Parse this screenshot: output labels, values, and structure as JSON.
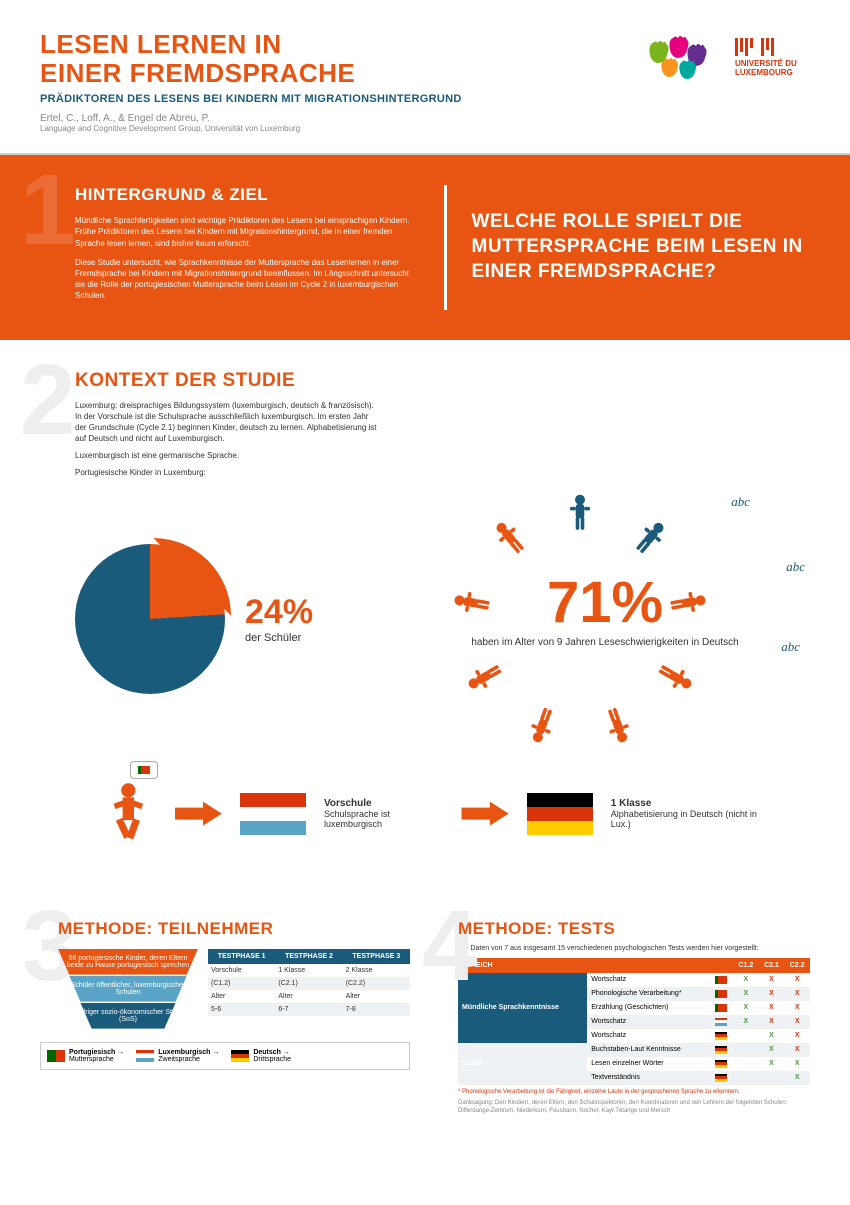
{
  "header": {
    "title": "LESEN LERNEN IN\nEINER FREMDSPRACHE",
    "subtitle": "PRÄDIKTOREN DES LESENS BEI KINDERN MIT MIGRATIONSHINTERGRUND",
    "authors": "Ertel, C., Loff, A., & Engel de Abreu, P.",
    "group": "Language and Cognitive Development Group, Universität von Luxemburg",
    "uni": "UNIVERSITÉ DU\nLUXEMBOURG"
  },
  "colors": {
    "orange": "#e85412",
    "blue": "#1a5a7a",
    "lightblue": "#5aa5c7",
    "grey_bg": "#eef2f4",
    "green_x": "#4a9b3a",
    "red_x": "#d9340a"
  },
  "s1": {
    "num": "1",
    "title": "HINTERGRUND & ZIEL",
    "p1": "Mündliche Sprachfertigkeiten sind wichtige Prädiktoren des Lesens bei einsprachigen Kindern. Frühe Prädiktoren des Lesens bei Kindern mit Migrationshintergrund, die in einer fremden Sprache lesen lernen, sind bisher kaum erforscht.",
    "p2": "Diese Studie untersucht, wie Sprachkenntnisse der Muttersprache das Lesenlernen in einer Fremdsprache bei Kindern mit Migrationshintergrund beeinflussen. Im Längsschnitt untersucht sie die Rolle der portugiesischen Muttersprache beim Lesen im Cycle 2 in luxemburgischen Schulen.",
    "question": "WELCHE ROLLE SPIELT DIE MUTTERSPRACHE BEIM LESEN IN EINER FREMDSPRACHE?"
  },
  "s2": {
    "num": "2",
    "title": "KONTEXT DER STUDIE",
    "p1": "Luxemburg: dreisprachiges Bildungssystem (luxemburgisch, deutsch & französisch). In der Vorschule ist die Schulsprache ausschließlich luxemburgisch. Im ersten Jahr der Grundschule (Cycle 2.1) beginnen Kinder, deutsch zu lernen. Alphabetisierung ist auf Deutsch und nicht auf Luxemburgisch.",
    "p2": "Luxemburgisch ist eine germanische Sprache.",
    "p3": "Portugiesische Kinder in Luxemburg:",
    "pie_pct": "24%",
    "pie_value": 24,
    "pie_sub": "der Schüler",
    "big_pct": "71%",
    "big_sub": "haben im Alter von 9 Jahren Leseschwierigkeiten in Deutsch",
    "flow": {
      "preschool_label": "Vorschule",
      "preschool_text": "Schulsprache ist luxemburgisch",
      "grade1_label": "1 Klasse",
      "grade1_text": "Alphabetisierung in Deutsch (nicht in Lux.)"
    }
  },
  "s3": {
    "num": "3",
    "title": "METHODE: TEILNEHMER",
    "funnel": [
      "66 portugiesische Kinder, deren Eltern beide zu Hause portugiesisch sprechen",
      "Schüler öffentlicher, luxemburgischer Schulen",
      "Niedriger sozio-ökonomischer Status (SoS)"
    ],
    "phases": {
      "headers": [
        "TESTPHASE 1",
        "TESTPHASE 2",
        "TESTPHASE 3"
      ],
      "rows": [
        [
          "Vorschule",
          "1 Klasse",
          "2 Klasse"
        ],
        [
          "(C1.2)",
          "(C2.1)",
          "(C2.2)"
        ],
        [
          "Alter",
          "Alter",
          "Alter"
        ],
        [
          "5-6",
          "6-7",
          "7-8"
        ]
      ]
    },
    "legend": [
      {
        "lang": "Portugiesisch",
        "role": "Muttersprache",
        "flag": [
          "#006600",
          "#d9340a"
        ],
        "vertical": true
      },
      {
        "lang": "Luxemburgisch",
        "role": "Zweitsprache",
        "flag": [
          "#d9340a",
          "#ffffff",
          "#5aa5c7"
        ]
      },
      {
        "lang": "Deutsch",
        "role": "Drittsprache",
        "flag": [
          "#000000",
          "#d9340a",
          "#ffcc00"
        ]
      }
    ]
  },
  "s4": {
    "num": "4",
    "title": "METHODE: TESTS",
    "intro": "Die Daten von 7 aus insgesamt 15 verschiedenen psychologischen Tests werden hier vorgestellt:",
    "headers": [
      "BEREICH",
      "",
      "",
      "C1.2",
      "C2.1",
      "C2.2"
    ],
    "categories": [
      {
        "name": "Mündliche Sprachkenntnisse",
        "tests": [
          {
            "name": "Wortschatz",
            "flag": "pt",
            "c": [
              "X",
              "X",
              "X"
            ],
            "cc": [
              "g",
              "r",
              "r"
            ]
          },
          {
            "name": "Phonologische Verarbeitung*",
            "flag": "pt",
            "c": [
              "X",
              "X",
              "X"
            ],
            "cc": [
              "g",
              "r",
              "r"
            ]
          },
          {
            "name": "Erzählung (Geschichten)",
            "flag": "pt",
            "c": [
              "X",
              "X",
              "X"
            ],
            "cc": [
              "g",
              "r",
              "r"
            ]
          },
          {
            "name": "Wortschatz",
            "flag": "lu",
            "c": [
              "X",
              "X",
              "X"
            ],
            "cc": [
              "g",
              "r",
              "r"
            ]
          },
          {
            "name": "Wortschatz",
            "flag": "de",
            "c": [
              "",
              "X",
              "X"
            ],
            "cc": [
              "",
              "g",
              "r"
            ]
          }
        ]
      },
      {
        "name": "Lesen",
        "tests": [
          {
            "name": "Buchstaben-Laut Kenntnisse",
            "flag": "de",
            "c": [
              "",
              "X",
              "X"
            ],
            "cc": [
              "",
              "g",
              "r"
            ]
          },
          {
            "name": "Lesen einzelner Wörter",
            "flag": "de",
            "c": [
              "",
              "X",
              "X"
            ],
            "cc": [
              "",
              "g",
              "g"
            ]
          },
          {
            "name": "Textverständnis",
            "flag": "de",
            "c": [
              "",
              "",
              "X"
            ],
            "cc": [
              "",
              "",
              "g"
            ]
          }
        ]
      }
    ],
    "footnote1": "* Phonologische Verarbeitung ist die Fähigkeit, einzelne Laute in der gesprochenen Sprache zu erkennen.",
    "footnote2": "Danksagung: Den Kindern, deren Eltern, den Schulinspektoren, den Koordinatoren und den Lehrern der folgenden Schulen: Differdange-Zentrum, Niederkorn, Fousbann, Nocher, Kayl-Tétange und Mersch"
  }
}
